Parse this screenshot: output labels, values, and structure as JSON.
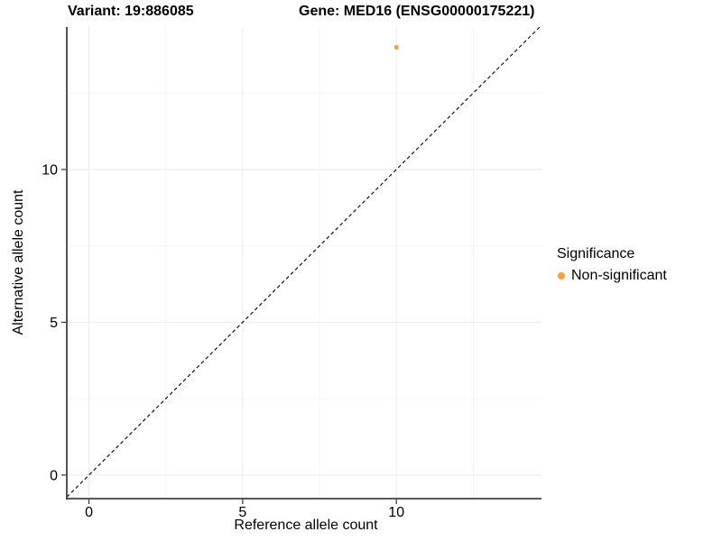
{
  "chart_data": {
    "type": "scatter",
    "title_variant": "Variant: 19:886085",
    "title_gene": "Gene: MED16 (ENSG00000175221)",
    "xlabel": "Reference allele count",
    "ylabel": "Alternative allele count",
    "xlim": [
      -0.72,
      14.72
    ],
    "ylim": [
      -0.77,
      14.66
    ],
    "x_major_ticks": [
      0,
      5,
      10
    ],
    "x_tick_labels": [
      "0",
      "5",
      "10"
    ],
    "x_minor_ticks": [
      2.5,
      7.5,
      12.5
    ],
    "y_major_ticks": [
      0,
      5,
      10
    ],
    "y_tick_labels": [
      "0",
      "5",
      "10"
    ],
    "grid": true,
    "identity_line": {
      "style": "dashed",
      "slope": 1,
      "intercept": 0
    },
    "series": [
      {
        "name": "Non-significant",
        "color": "#F9A242",
        "points": [
          {
            "x": 10,
            "y": 14
          }
        ]
      }
    ],
    "legend": {
      "title": "Significance",
      "position": "right",
      "items": [
        {
          "label": "Non-significant",
          "color": "#F9A242"
        }
      ]
    }
  },
  "colors": {
    "point": "#F9A242",
    "axis": "#404040",
    "tick": "#333333",
    "grid_major": "#EBEBEB",
    "grid_minor": "#F5F5F5",
    "dashed_line": "#000000",
    "text": "#000000",
    "background": "#FFFFFF"
  }
}
